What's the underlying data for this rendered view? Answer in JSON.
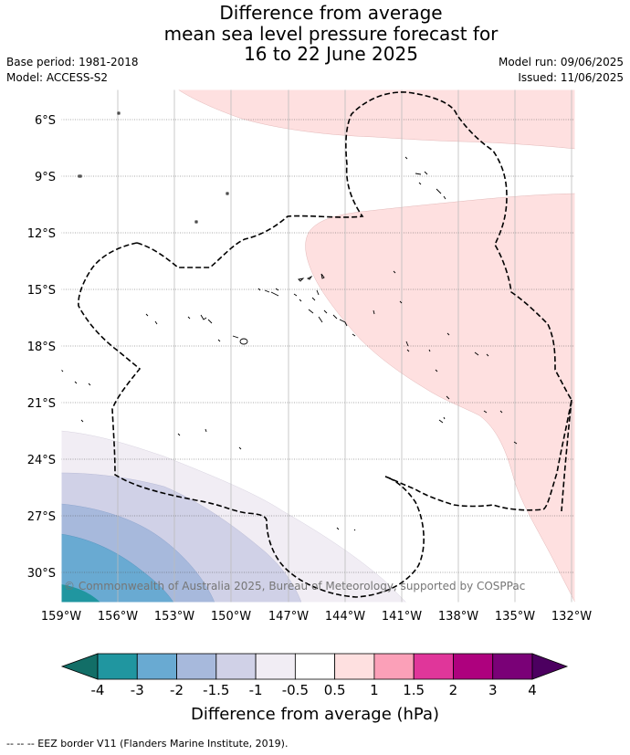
{
  "title": {
    "line1": "Difference from average",
    "line2": "mean sea level pressure forecast for",
    "line3": "16 to 22 June 2025"
  },
  "meta": {
    "base_period": "Base period: 1981-2018",
    "model": "Model: ACCESS-S2",
    "model_run": "Model run: 09/06/2025",
    "issued": "Issued: 11/06/2025"
  },
  "map": {
    "lat_labels": [
      "6°S",
      "9°S",
      "12°S",
      "15°S",
      "18°S",
      "21°S",
      "24°S",
      "27°S",
      "30°S"
    ],
    "lon_labels": [
      "159°W",
      "156°W",
      "153°W",
      "150°W",
      "147°W",
      "144°W",
      "141°W",
      "138°W",
      "135°W",
      "132°W"
    ],
    "copyright": "© Commonwealth of Australia 2025, Bureau of Meteorology, supported by COSPPac"
  },
  "colorbar": {
    "ticks": [
      "-4",
      "-3",
      "-2",
      "-1.5",
      "-1",
      "-0.5",
      "0.5",
      "1",
      "1.5",
      "2",
      "3",
      "4"
    ],
    "colors": [
      "#126e67",
      "#2096a0",
      "#69aad2",
      "#a7b9dc",
      "#d0d1e7",
      "#f1edf4",
      "#ffffff",
      "#fee0e0",
      "#fba0b8",
      "#e0369a",
      "#ae017e",
      "#7a0177",
      "#4c0060"
    ],
    "label": "Difference from average (hPa)"
  },
  "footer": "-- -- -- EEZ border V11 (Flanders Marine Institute, 2019)."
}
